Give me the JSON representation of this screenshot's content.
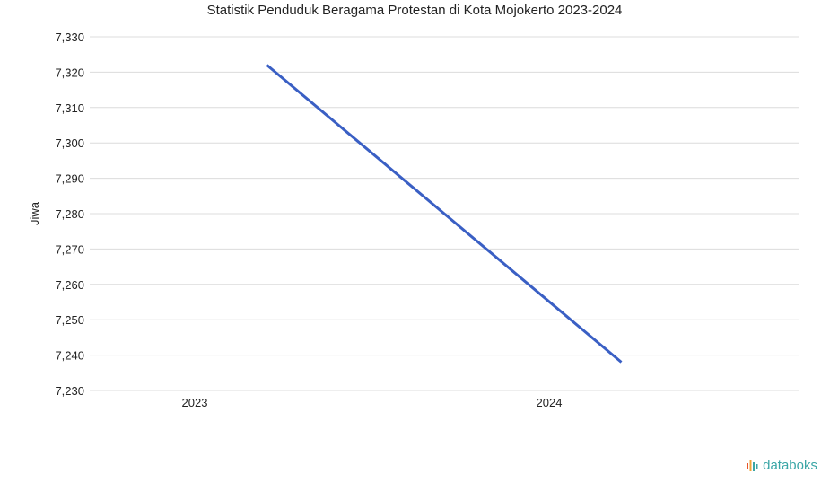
{
  "chart_data": {
    "type": "line",
    "title": "Statistik Penduduk Beragama Protestan di Kota Mojokerto 2023-2024",
    "xlabel": "",
    "ylabel": "Jiwa",
    "categories": [
      "2023",
      "2024"
    ],
    "series": [
      {
        "values": [
          7322,
          7238
        ],
        "color": "#3a5fc4"
      }
    ],
    "ylim": [
      7230,
      7330
    ],
    "yticks": [
      "7,230",
      "7,240",
      "7,250",
      "7,260",
      "7,270",
      "7,280",
      "7,290",
      "7,300",
      "7,310",
      "7,320",
      "7,330"
    ],
    "grid": true,
    "legend": "none"
  },
  "brand": {
    "name": "databoks",
    "color": "#3aa6a6",
    "icon": "databoks-logo-icon",
    "icon_colors": [
      "#e8562a",
      "#f0a33a",
      "#3aa6a6"
    ]
  }
}
